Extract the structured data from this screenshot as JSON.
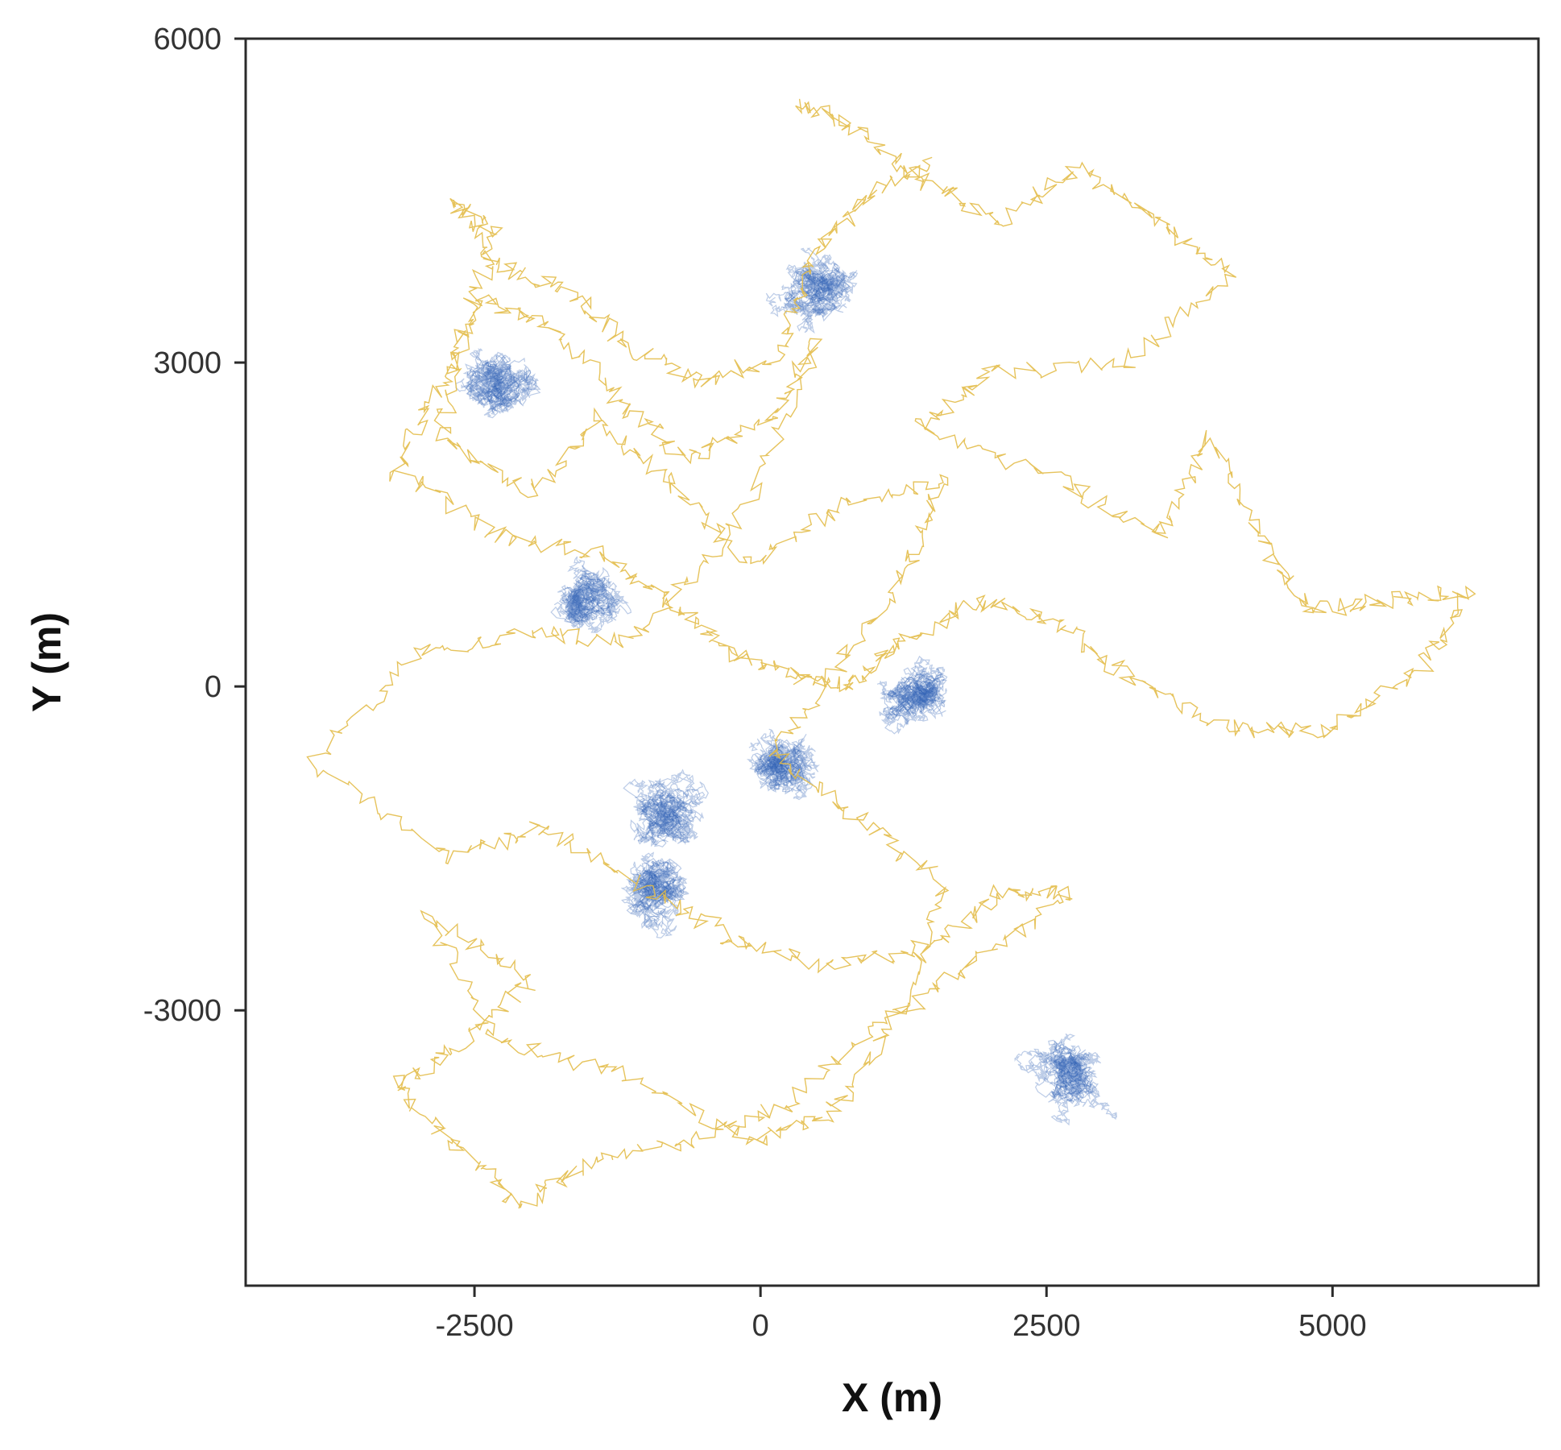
{
  "chart_data": {
    "type": "line",
    "title": "",
    "xlabel": "X (m)",
    "ylabel": "Y (m)",
    "xlim": [
      -4500,
      6800
    ],
    "ylim": [
      -5550,
      6000
    ],
    "xticks": [
      -2500,
      0,
      2500,
      5000
    ],
    "yticks": [
      -3000,
      0,
      3000,
      6000
    ],
    "xtick_labels": [
      "-2500",
      "0",
      "2500",
      "5000"
    ],
    "ytick_labels": [
      "-3000",
      "0",
      "3000",
      "6000"
    ],
    "grid": false,
    "legend": "none",
    "series": [
      {
        "color": "#e3bd4a",
        "style": "thin wandering trajectory",
        "waypoints": [
          [
            300,
            5400
          ],
          [
            800,
            5200
          ],
          [
            1400,
            4700
          ],
          [
            2100,
            4300
          ],
          [
            2800,
            4800
          ],
          [
            3500,
            4300
          ],
          [
            4100,
            3800
          ],
          [
            3200,
            3000
          ],
          [
            2000,
            2900
          ],
          [
            1400,
            2400
          ],
          [
            2600,
            1900
          ],
          [
            3500,
            1400
          ],
          [
            3900,
            2300
          ],
          [
            4400,
            1300
          ],
          [
            4800,
            700
          ],
          [
            5500,
            800
          ],
          [
            6200,
            900
          ],
          [
            5800,
            200
          ],
          [
            5000,
            -400
          ],
          [
            4200,
            -400
          ],
          [
            3300,
            0
          ],
          [
            2600,
            600
          ],
          [
            1900,
            800
          ],
          [
            1200,
            400
          ],
          [
            800,
            0
          ],
          [
            300,
            100
          ],
          [
            -200,
            300
          ],
          [
            -700,
            700
          ],
          [
            -1300,
            1200
          ],
          [
            -2300,
            1400
          ],
          [
            -3200,
            2000
          ],
          [
            -2800,
            2800
          ],
          [
            -2400,
            3600
          ],
          [
            -1800,
            3300
          ],
          [
            -1200,
            2600
          ],
          [
            -600,
            2100
          ],
          [
            100,
            2500
          ],
          [
            500,
            3200
          ],
          [
            -200,
            1500
          ],
          [
            -1100,
            400
          ],
          [
            -2000,
            500
          ],
          [
            -3000,
            300
          ],
          [
            -3900,
            -700
          ],
          [
            -2700,
            -1600
          ],
          [
            -1900,
            -1300
          ],
          [
            -1100,
            -1800
          ],
          [
            -300,
            -2300
          ],
          [
            600,
            -2600
          ],
          [
            1500,
            -2400
          ],
          [
            2100,
            -1900
          ],
          [
            2700,
            -1900
          ],
          [
            1800,
            -2600
          ],
          [
            1000,
            -3200
          ],
          [
            200,
            -3900
          ],
          [
            -600,
            -4200
          ],
          [
            -1500,
            -4400
          ],
          [
            -2100,
            -4800
          ],
          [
            -2700,
            -4200
          ],
          [
            -3200,
            -3700
          ],
          [
            -2600,
            -3300
          ],
          [
            -2000,
            -2700
          ],
          [
            -2900,
            -2100
          ],
          [
            -2300,
            -3300
          ],
          [
            -1200,
            -3600
          ],
          [
            -100,
            -4200
          ],
          [
            600,
            -4000
          ],
          [
            1200,
            -3000
          ],
          [
            1600,
            -1800
          ],
          [
            800,
            -1200
          ],
          [
            100,
            -600
          ],
          [
            700,
            200
          ],
          [
            1300,
            1100
          ],
          [
            1600,
            1900
          ],
          [
            700,
            1700
          ],
          [
            -100,
            1100
          ],
          [
            -800,
            1900
          ],
          [
            -1400,
            2500
          ],
          [
            -2000,
            1800
          ],
          [
            -2800,
            2300
          ],
          [
            -2600,
            3300
          ],
          [
            -2300,
            4200
          ],
          [
            -2700,
            4500
          ],
          [
            -2300,
            3900
          ],
          [
            -1700,
            3700
          ],
          [
            -1100,
            3100
          ],
          [
            -500,
            2800
          ],
          [
            200,
            3100
          ],
          [
            400,
            3900
          ],
          [
            900,
            4500
          ],
          [
            1500,
            4900
          ]
        ]
      }
    ],
    "clusters": [
      {
        "color": "#2f5fb3",
        "center": [
          2700,
          -3600
        ],
        "spread": [
          380,
          400
        ]
      },
      {
        "color": "#2f5fb3",
        "center": [
          -2300,
          2800
        ],
        "spread": [
          420,
          360
        ]
      },
      {
        "color": "#2f5fb3",
        "center": [
          500,
          3700
        ],
        "spread": [
          360,
          500
        ]
      },
      {
        "color": "#2f5fb3",
        "center": [
          -1500,
          800
        ],
        "spread": [
          380,
          380
        ]
      },
      {
        "color": "#2f5fb3",
        "center": [
          1400,
          -100
        ],
        "spread": [
          480,
          440
        ]
      },
      {
        "color": "#2f5fb3",
        "center": [
          200,
          -700
        ],
        "spread": [
          360,
          340
        ]
      },
      {
        "color": "#2f5fb3",
        "center": [
          -800,
          -1200
        ],
        "spread": [
          520,
          640
        ]
      },
      {
        "color": "#2f5fb3",
        "center": [
          -900,
          -1900
        ],
        "spread": [
          380,
          360
        ]
      }
    ]
  }
}
